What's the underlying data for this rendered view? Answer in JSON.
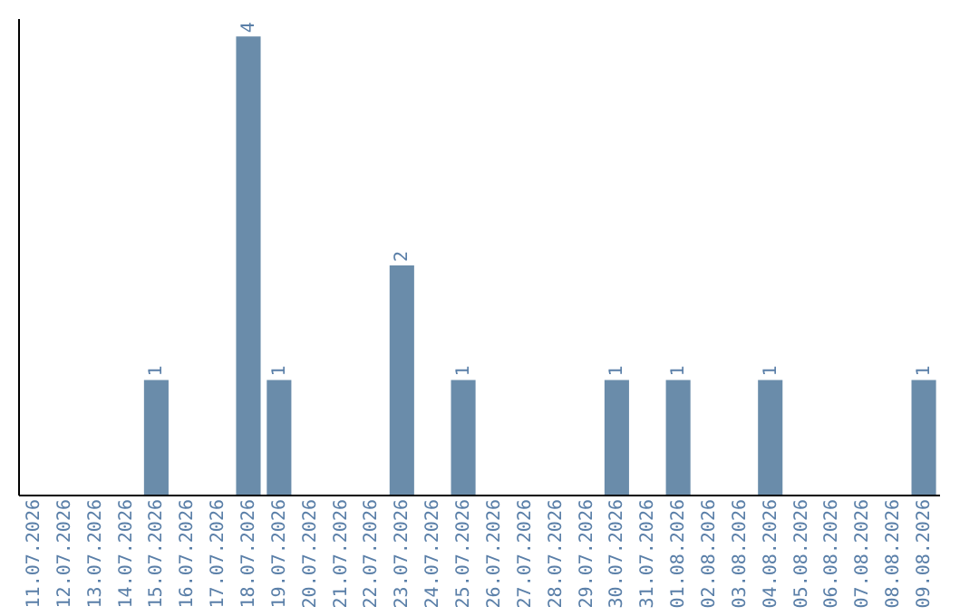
{
  "chart_data": {
    "type": "bar",
    "categories": [
      "11.07.2026",
      "12.07.2026",
      "13.07.2026",
      "14.07.2026",
      "15.07.2026",
      "16.07.2026",
      "17.07.2026",
      "18.07.2026",
      "19.07.2026",
      "20.07.2026",
      "21.07.2026",
      "22.07.2026",
      "23.07.2026",
      "24.07.2026",
      "25.07.2026",
      "26.07.2026",
      "27.07.2026",
      "28.07.2026",
      "29.07.2026",
      "30.07.2026",
      "31.07.2026",
      "01.08.2026",
      "02.08.2026",
      "03.08.2026",
      "04.08.2026",
      "05.08.2026",
      "06.08.2026",
      "07.08.2026",
      "08.08.2026",
      "09.08.2026"
    ],
    "values": [
      0,
      0,
      0,
      0,
      1,
      0,
      0,
      4,
      1,
      0,
      0,
      0,
      2,
      0,
      1,
      0,
      0,
      0,
      0,
      1,
      0,
      1,
      0,
      0,
      1,
      0,
      0,
      0,
      0,
      1
    ],
    "value_labels": [
      null,
      null,
      null,
      null,
      "1",
      null,
      null,
      "4",
      "1",
      null,
      null,
      null,
      "2",
      null,
      "1",
      null,
      null,
      null,
      null,
      "1",
      null,
      "1",
      null,
      null,
      "1",
      null,
      null,
      null,
      null,
      "1"
    ],
    "color": "#6a8caa",
    "ylim": [
      0,
      4.16
    ],
    "tick_labels": "x",
    "grid": false
  }
}
